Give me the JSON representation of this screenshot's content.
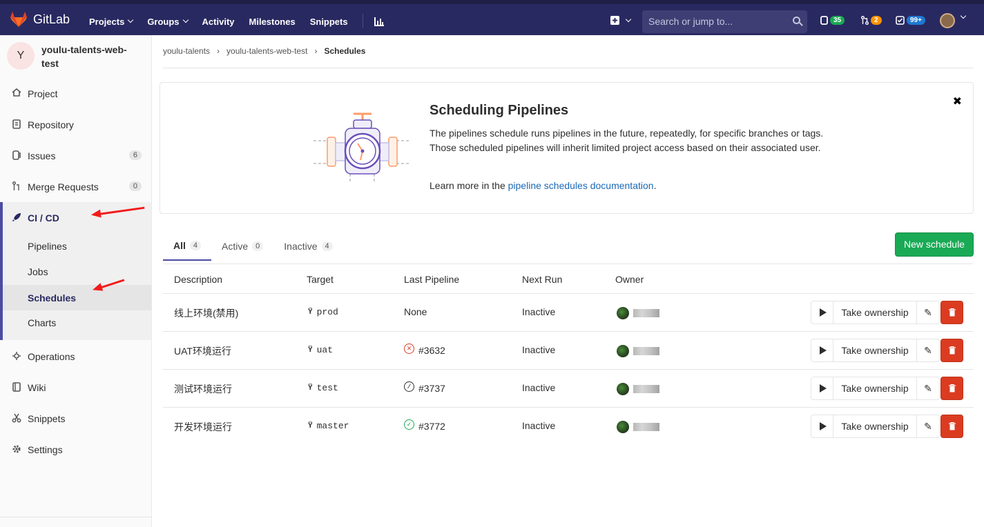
{
  "header": {
    "brand": "GitLab",
    "nav": [
      "Projects",
      "Groups",
      "Activity",
      "Milestones",
      "Snippets"
    ],
    "search_placeholder": "Search or jump to...",
    "counters": {
      "issues": "35",
      "merge_requests": "2",
      "todos": "99+"
    },
    "colors": {
      "bar": "#292961",
      "issues_badge": "#1aaa55",
      "mr_badge": "#fc9403",
      "todo_badge": "#1f78d1"
    }
  },
  "sidebar": {
    "avatar_letter": "Y",
    "project_name": "youlu-talents-web-test",
    "items": {
      "project": "Project",
      "repository": "Repository",
      "issues": "Issues",
      "issues_count": "6",
      "merge_requests": "Merge Requests",
      "merge_requests_count": "0",
      "cicd": "CI / CD",
      "operations": "Operations",
      "wiki": "Wiki",
      "snippets": "Snippets",
      "settings": "Settings"
    },
    "cicd_sub": {
      "pipelines": "Pipelines",
      "jobs": "Jobs",
      "schedules": "Schedules",
      "charts": "Charts"
    }
  },
  "breadcrumb": {
    "group": "youlu-talents",
    "project": "youlu-talents-web-test",
    "current": "Schedules"
  },
  "info": {
    "title": "Scheduling Pipelines",
    "text": "The pipelines schedule runs pipelines in the future, repeatedly, for specific branches or tags. Those scheduled pipelines will inherit limited project access based on their associated user.",
    "learn_prefix": "Learn more in the",
    "learn_link": "pipeline schedules documentation",
    "learn_suffix": "."
  },
  "tabs": {
    "all": "All",
    "all_count": "4",
    "active": "Active",
    "active_count": "0",
    "inactive": "Inactive",
    "inactive_count": "4"
  },
  "new_schedule": "New schedule",
  "table": {
    "headers": {
      "description": "Description",
      "target": "Target",
      "last_pipeline": "Last Pipeline",
      "next_run": "Next Run",
      "owner": "Owner"
    },
    "take_ownership": "Take ownership",
    "rows": [
      {
        "description": "线上环境(禁用)",
        "target": "prod",
        "last_pipeline": "None",
        "next_run": "Inactive"
      },
      {
        "description": "UAT环境运行",
        "target": "uat",
        "status": "failed",
        "last_pipeline": "#3632",
        "next_run": "Inactive"
      },
      {
        "description": "测试环境运行",
        "target": "test",
        "status": "skipped",
        "last_pipeline": "#3737",
        "next_run": "Inactive"
      },
      {
        "description": "开发环境运行",
        "target": "master",
        "status": "success",
        "last_pipeline": "#3772",
        "next_run": "Inactive"
      }
    ]
  }
}
